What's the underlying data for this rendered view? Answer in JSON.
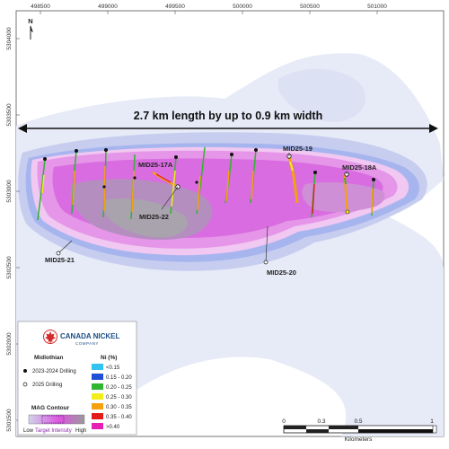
{
  "map": {
    "north_label": "N",
    "x_ticks": [
      "498500",
      "499000",
      "499500",
      "500000",
      "500500",
      "501000"
    ],
    "y_ticks": [
      "5304000",
      "5303500",
      "5303000",
      "5302500",
      "5302000",
      "5301500"
    ],
    "dimension_label": "2.7 km length by up to 0.9 km width",
    "holes": [
      {
        "label": "MID25-17A"
      },
      {
        "label": "MID25-22"
      },
      {
        "label": "MID25-21"
      },
      {
        "label": "MID25-19"
      },
      {
        "label": "MID25-20"
      },
      {
        "label": "MID25-18A"
      }
    ]
  },
  "legend": {
    "logo_name": "CANADA NICKEL",
    "logo_sub": "COMPANY",
    "project_title": "Midlothian",
    "drill_2023_label": "2023-2024 Drilling",
    "drill_2025_label": "2025 Drilling",
    "ni_title": "Ni (%)",
    "ni_classes": [
      {
        "label": "<0.15",
        "color": "#33c3f0"
      },
      {
        "label": "0.15 - 0.20",
        "color": "#1f4fd6"
      },
      {
        "label": "0.20 - 0.25",
        "color": "#2fb52f"
      },
      {
        "label": "0.25 - 0.30",
        "color": "#f2ee1b"
      },
      {
        "label": "0.30 - 0.35",
        "color": "#f5a10e"
      },
      {
        "label": "0.35 - 0.40",
        "color": "#e31b1b"
      },
      {
        "label": ">0.40",
        "color": "#e81fb4"
      }
    ],
    "mag_title": "MAG Contour",
    "mag_low": "Low",
    "mag_target": "Target Intensity",
    "mag_high": "High"
  },
  "scale_bar": {
    "ticks": [
      "0",
      "0.3",
      "0.5",
      "1"
    ],
    "unit": "Kilometers"
  }
}
